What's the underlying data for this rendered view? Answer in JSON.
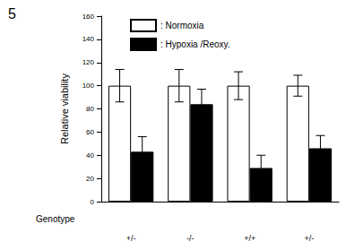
{
  "chart_data": {
    "type": "bar",
    "title": "5",
    "xlabel": "Genotype",
    "ylabel": "Relative viability",
    "categories": [
      "+/-",
      "-/-",
      "+/+",
      "+/-"
    ],
    "series": [
      {
        "name": ": Normoxia",
        "color": "#ffffff",
        "values": [
          100,
          100,
          100,
          100
        ],
        "errors": [
          14,
          14,
          12,
          9
        ]
      },
      {
        "name": ": Hypoxia /Reoxy.",
        "color": "#000000",
        "values": [
          43,
          84,
          29,
          46
        ],
        "errors": [
          13,
          13,
          11,
          11
        ]
      }
    ],
    "ylim": [
      0,
      160
    ],
    "yticks": [
      0,
      20,
      40,
      60,
      80,
      100,
      120,
      140,
      160
    ],
    "grid": false,
    "legend": "upper left"
  }
}
